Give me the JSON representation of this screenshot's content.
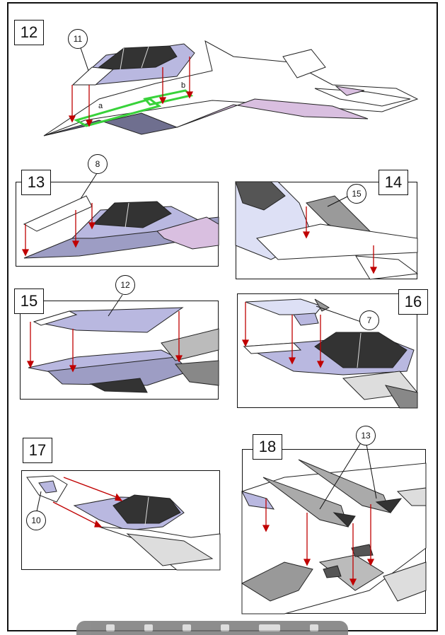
{
  "steps": {
    "s12": "12",
    "s13": "13",
    "s14": "14",
    "s15": "15",
    "s16": "16",
    "s17": "17",
    "s18": "18"
  },
  "callouts": {
    "c11": "11",
    "c8": "8",
    "c15": "15",
    "c12": "12",
    "c7": "7",
    "c10": "10",
    "c13": "13"
  },
  "letters": {
    "a": "a",
    "b": "b"
  },
  "colors": {
    "arrow": "#c00000",
    "part_lavender": "#b9b8e0",
    "part_pink": "#d9bfe0",
    "canopy_dark": "#333333",
    "glue_tab_green": "#38d23a",
    "part_gray": "#9a9a9a"
  },
  "toolbar": {
    "icons": [
      "grid-icon",
      "page-icon",
      "rotate-icon",
      "page-icon",
      "fit-icon",
      "zoom-icon"
    ]
  }
}
